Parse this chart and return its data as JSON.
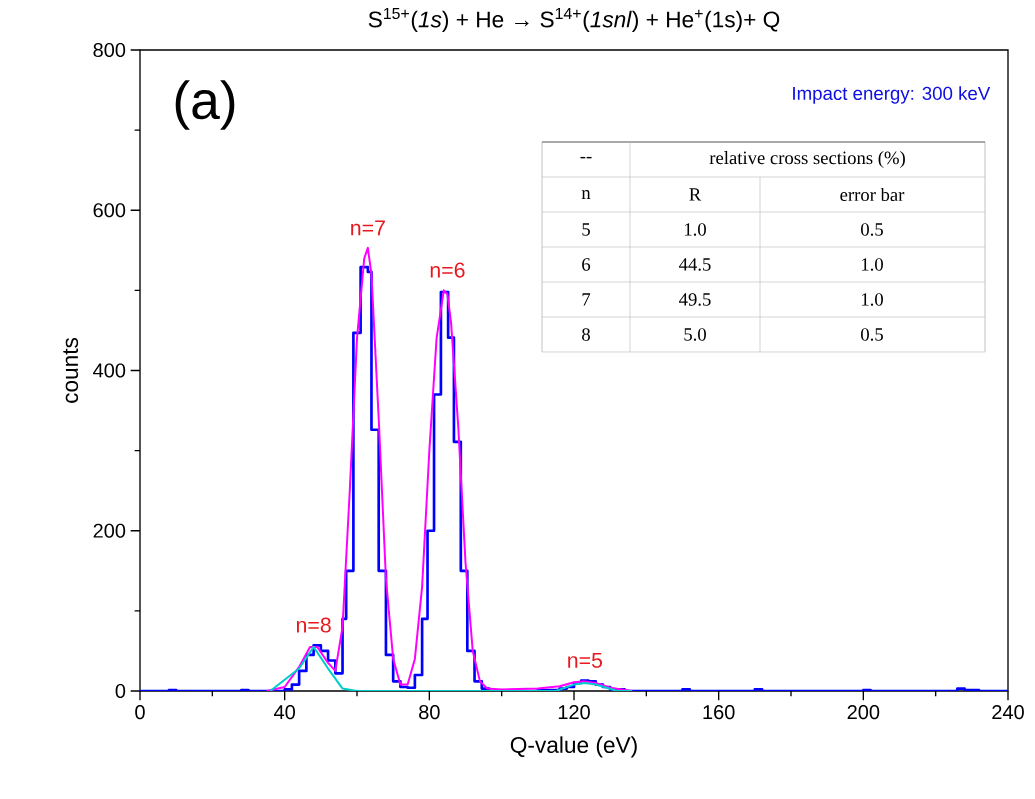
{
  "chart_data": {
    "type": "step",
    "title": "S$^{15+}$(*1s*) + He → S$^{14+}$(*1snl*) + He$^{+}$(1s)+ Q",
    "xlabel": "Q-value (eV)",
    "ylabel": "counts",
    "xlim": [
      0,
      240
    ],
    "ylim": [
      0,
      800
    ],
    "xticks": [
      0,
      40,
      80,
      120,
      160,
      200,
      240
    ],
    "yticks": [
      0,
      200,
      400,
      600,
      800
    ],
    "series": [
      {
        "color": "#0000ff",
        "x": [
          0,
          8,
          10,
          28,
          30,
          36,
          40,
          42,
          44,
          46,
          48,
          50,
          52,
          54,
          56,
          57,
          59,
          61,
          63,
          64,
          66,
          68,
          70,
          72,
          74,
          76,
          78,
          79.5,
          81.3,
          83.2,
          85.2,
          86.8,
          88.7,
          90.5,
          92.5,
          94.5,
          96.5,
          100,
          110,
          116,
          118,
          120,
          122,
          124,
          126,
          128,
          130,
          134,
          150,
          152,
          170,
          172,
          200,
          202,
          226,
          228,
          232,
          236,
          240
        ],
        "values": [
          0,
          1,
          0,
          1,
          0,
          0,
          2,
          8,
          25,
          45,
          57,
          50,
          38,
          22,
          90,
          150,
          447,
          529,
          523,
          326,
          150,
          45,
          12,
          5,
          4,
          20,
          90,
          200,
          370,
          498,
          441,
          311,
          150,
          50,
          12,
          3,
          0,
          0,
          1,
          3,
          5,
          10,
          13,
          12,
          8,
          5,
          2,
          0,
          2,
          0,
          2,
          0,
          1,
          0,
          3,
          1,
          0,
          0,
          0
        ]
      },
      {
        "type": "line",
        "color": "#ff00ff",
        "x": [
          35,
          40,
          44,
          47,
          49,
          52,
          54,
          56,
          58,
          60,
          62,
          63,
          64,
          66,
          68,
          70,
          72,
          74,
          76,
          78,
          80,
          82,
          84,
          85,
          86,
          88,
          90,
          92,
          94,
          96,
          100,
          110,
          116,
          120,
          123,
          126,
          130,
          136
        ],
        "values": [
          0,
          5,
          30,
          55,
          55,
          35,
          25,
          80,
          250,
          440,
          540,
          553,
          520,
          340,
          140,
          40,
          8,
          8,
          40,
          130,
          300,
          440,
          500,
          495,
          460,
          330,
          160,
          50,
          12,
          3,
          2,
          3,
          6,
          11,
          12,
          10,
          4,
          0
        ]
      },
      {
        "type": "line",
        "color": "#00cccc",
        "x": [
          36,
          44,
          48,
          52,
          56,
          60,
          115,
          120,
          123,
          126,
          132,
          136
        ],
        "values": [
          0,
          28,
          55,
          28,
          3,
          0,
          0,
          8,
          10,
          8,
          0,
          0
        ]
      }
    ],
    "annotations": [
      "(a)",
      "Impact energy: 300 keV",
      {
        "text": "n=8",
        "x": 48,
        "y": 57
      },
      {
        "text": "n=7",
        "x": 63,
        "y": 553
      },
      {
        "text": "n=6",
        "x": 85,
        "y": 500
      },
      {
        "text": "n=5",
        "x": 123,
        "y": 13
      },
      "--",
      "relative cross sections (%)",
      "n",
      "R",
      "error bar",
      "5",
      "1.0",
      "0.5",
      "6",
      "44.5",
      "1.0",
      "7",
      "49.5",
      "1.0",
      "8",
      "5.0",
      "0.5"
    ]
  }
}
